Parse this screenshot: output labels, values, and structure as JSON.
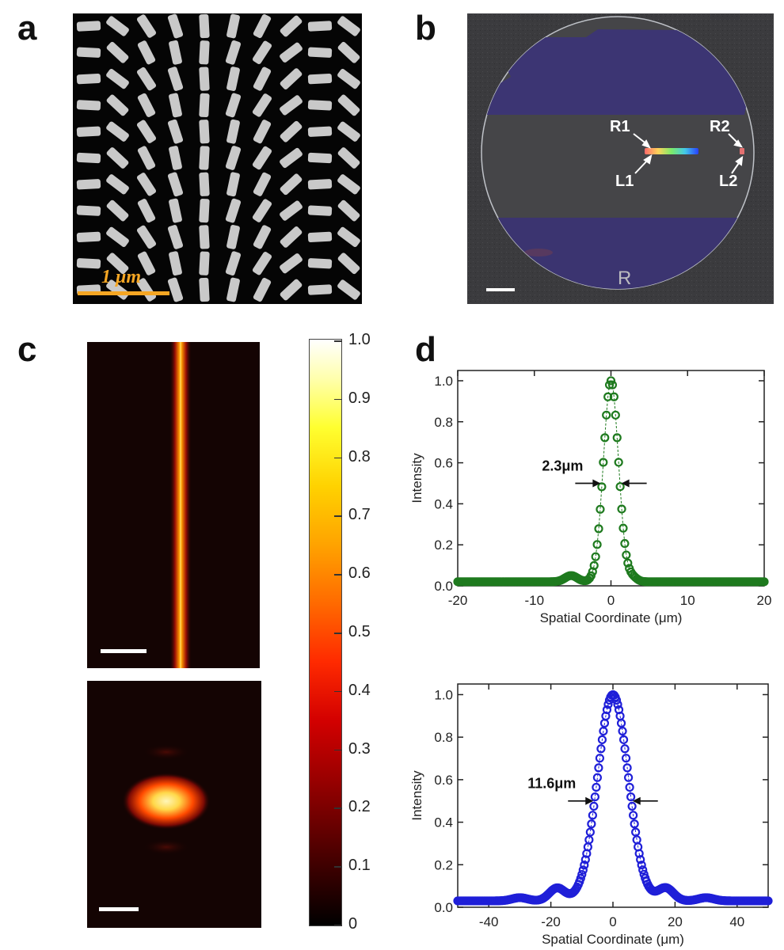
{
  "panel_labels": {
    "a": "a",
    "b": "b",
    "c": "c",
    "d": "d"
  },
  "panel_a": {
    "scale_bar_label": "1 μm",
    "scale_bar_color": "#f5a623"
  },
  "panel_b": {
    "labels": {
      "R1": "R1",
      "R2": "R2",
      "L1": "L1",
      "L2": "L2"
    },
    "handwriting": "R"
  },
  "panel_c": {
    "colorbar_ticks": [
      "1.0",
      "0.9",
      "0.8",
      "0.7",
      "0.6",
      "0.5",
      "0.4",
      "0.3",
      "0.2",
      "0.1",
      "0"
    ]
  },
  "chart_data": [
    {
      "type": "scatter",
      "name_hint": "top",
      "xlabel": "Spatial Coordinate (μm)",
      "ylabel": "Intensity",
      "xlim": [
        -20,
        20
      ],
      "ylim": [
        0,
        1.05
      ],
      "xticks": [
        "-20",
        "-10",
        "0",
        "10",
        "20"
      ],
      "yticks": [
        "0.0",
        "0.2",
        "0.4",
        "0.6",
        "0.8",
        "1.0"
      ],
      "annotation": "2.3μm",
      "fwhm": 2.3,
      "color": "#1e7a1e",
      "profile": {
        "center": 0,
        "sigma": 0.98,
        "baseline": 0.02,
        "sidelobes": [
          [
            -5.2,
            0.03,
            0.8
          ],
          [
            2.8,
            0.02,
            0.6
          ]
        ]
      }
    },
    {
      "type": "scatter",
      "name_hint": "bottom",
      "xlabel": "Spatial Coordinate (μm)",
      "ylabel": "Intensity",
      "xlim": [
        -50,
        50
      ],
      "ylim": [
        0,
        1.05
      ],
      "xticks": [
        "-40",
        "-20",
        "0",
        "20",
        "40"
      ],
      "yticks": [
        "0.0",
        "0.2",
        "0.4",
        "0.6",
        "0.8",
        "1.0"
      ],
      "annotation": "11.6μm",
      "fwhm": 11.6,
      "color": "#1f1fd8",
      "profile": {
        "center": 0,
        "sigma": 4.93,
        "baseline": 0.03,
        "sidelobes": [
          [
            -18,
            0.06,
            2.5
          ],
          [
            17,
            0.06,
            2.5
          ],
          [
            -30,
            0.015,
            2.5
          ],
          [
            30,
            0.015,
            2.5
          ]
        ]
      }
    }
  ]
}
